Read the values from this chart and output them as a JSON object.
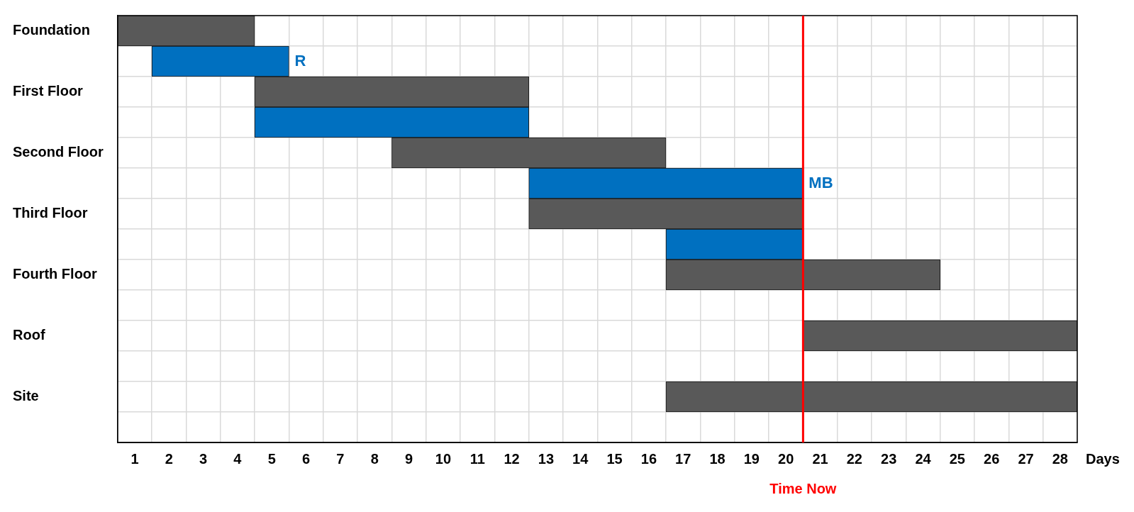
{
  "chart_data": {
    "type": "bar",
    "orientation": "horizontal",
    "xlabel": "Days",
    "categories": [
      "Foundation",
      null,
      "First Floor",
      null,
      "Second Floor",
      null,
      "Third Floor",
      null,
      "Fourth Floor",
      null,
      "Roof",
      null,
      "Site",
      null
    ],
    "base": [
      0,
      1,
      4,
      4,
      8,
      12,
      12,
      16,
      16,
      null,
      20,
      null,
      16,
      null
    ],
    "values": [
      4,
      4,
      8,
      8,
      8,
      8,
      8,
      4,
      8,
      null,
      8,
      null,
      12,
      null
    ],
    "colors": [
      "#595959",
      "#0070c0",
      "#595959",
      "#0070c0",
      "#595959",
      "#0070c0",
      "#595959",
      "#0070c0",
      "#595959",
      "#595959",
      "#595959",
      "#595959",
      "#595959",
      "#595959"
    ],
    "value_labels": [
      null,
      "R",
      null,
      null,
      null,
      "MB",
      null,
      null,
      null,
      null,
      null,
      null,
      null,
      null
    ],
    "xlim": [
      0,
      28
    ],
    "xticks": [
      {
        "value": 0,
        "label": null
      },
      {
        "value": 0.5,
        "label": "1"
      },
      {
        "value": 1,
        "label": null
      },
      {
        "value": 1.5,
        "label": "2"
      },
      {
        "value": 2,
        "label": null
      },
      {
        "value": 2.5,
        "label": "3"
      },
      {
        "value": 3,
        "label": null
      },
      {
        "value": 3.5,
        "label": "4"
      },
      {
        "value": 4,
        "label": null
      },
      {
        "value": 4.5,
        "label": "5"
      },
      {
        "value": 5,
        "label": null
      },
      {
        "value": 5.5,
        "label": "6"
      },
      {
        "value": 6,
        "label": null
      },
      {
        "value": 6.5,
        "label": "7"
      },
      {
        "value": 7,
        "label": null
      },
      {
        "value": 7.5,
        "label": "8"
      },
      {
        "value": 8,
        "label": null
      },
      {
        "value": 8.5,
        "label": "9"
      },
      {
        "value": 9,
        "label": null
      },
      {
        "value": 9.5,
        "label": "10"
      },
      {
        "value": 10,
        "label": null
      },
      {
        "value": 10.5,
        "label": "11"
      },
      {
        "value": 11,
        "label": null
      },
      {
        "value": 11.5,
        "label": "12"
      },
      {
        "value": 12,
        "label": null
      },
      {
        "value": 12.5,
        "label": "13"
      },
      {
        "value": 13,
        "label": null
      },
      {
        "value": 13.5,
        "label": "14"
      },
      {
        "value": 14,
        "label": null
      },
      {
        "value": 14.5,
        "label": "15"
      },
      {
        "value": 15,
        "label": null
      },
      {
        "value": 15.5,
        "label": "16"
      },
      {
        "value": 16,
        "label": null
      },
      {
        "value": 16.5,
        "label": "17"
      },
      {
        "value": 17,
        "label": null
      },
      {
        "value": 17.5,
        "label": "18"
      },
      {
        "value": 18,
        "label": null
      },
      {
        "value": 18.5,
        "label": "19"
      },
      {
        "value": 19,
        "label": null
      },
      {
        "value": 19.5,
        "label": "20"
      },
      {
        "value": 20,
        "label": null
      },
      {
        "value": 20.5,
        "label": "21"
      },
      {
        "value": 21,
        "label": null
      },
      {
        "value": 21.5,
        "label": "22"
      },
      {
        "value": 22,
        "label": null
      },
      {
        "value": 22.5,
        "label": "23"
      },
      {
        "value": 23,
        "label": null
      },
      {
        "value": 23.5,
        "label": "24"
      },
      {
        "value": 24,
        "label": null
      },
      {
        "value": 24.5,
        "label": "25"
      },
      {
        "value": 25,
        "label": null
      },
      {
        "value": 25.5,
        "label": "26"
      },
      {
        "value": 26,
        "label": null
      },
      {
        "value": 26.5,
        "label": "27"
      },
      {
        "value": 27,
        "label": null
      },
      {
        "value": 27.5,
        "label": "28"
      },
      {
        "value": 28,
        "label": null
      }
    ],
    "ref_lines": [
      {
        "axis": "x",
        "value": 20,
        "label": "Time Now",
        "color": "#ff0000"
      }
    ],
    "grid": true,
    "legend": false
  }
}
